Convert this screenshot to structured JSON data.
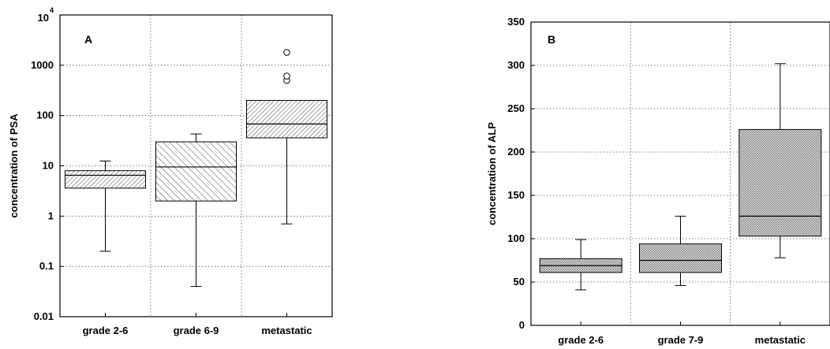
{
  "chart_data": [
    {
      "type": "box",
      "panel_label": "A",
      "ylabel": "concentration of PSA",
      "yscale": "log",
      "ylim": [
        0.01,
        10000
      ],
      "yticks": [
        {
          "value": 0.01,
          "label": "0.01"
        },
        {
          "value": 0.1,
          "label": "0.1"
        },
        {
          "value": 1,
          "label": "1"
        },
        {
          "value": 10,
          "label": "10"
        },
        {
          "value": 100,
          "label": "100"
        },
        {
          "value": 1000,
          "label": "1000"
        },
        {
          "value": 10000,
          "label": "10",
          "sup": "4"
        }
      ],
      "grid": true,
      "categories": [
        "grade 2-6",
        "grade 6-9",
        "metastatic"
      ],
      "boxes": [
        {
          "category": "grade 2-6",
          "whisker_low": 0.2,
          "q1": 3.6,
          "median": 6.5,
          "q3": 8,
          "whisker_high": 12.5,
          "outliers": []
        },
        {
          "category": "grade 6-9",
          "whisker_low": 0.04,
          "q1": 2,
          "median": 9.5,
          "q3": 30,
          "whisker_high": 43,
          "outliers": []
        },
        {
          "category": "metastatic",
          "whisker_low": 0.7,
          "q1": 36,
          "median": 68,
          "q3": 200,
          "whisker_high": 200,
          "outliers": [
            500,
            610,
            1800
          ]
        }
      ]
    },
    {
      "type": "box",
      "panel_label": "B",
      "ylabel": "concentration of ALP",
      "yscale": "linear",
      "ylim": [
        0,
        350
      ],
      "yticks": [
        {
          "value": 0,
          "label": "0"
        },
        {
          "value": 50,
          "label": "50"
        },
        {
          "value": 100,
          "label": "100"
        },
        {
          "value": 150,
          "label": "150"
        },
        {
          "value": 200,
          "label": "200"
        },
        {
          "value": 250,
          "label": "250"
        },
        {
          "value": 300,
          "label": "300"
        },
        {
          "value": 350,
          "label": "350"
        }
      ],
      "grid": true,
      "categories": [
        "grade 2-6",
        "grade 7-9",
        "metastatic"
      ],
      "boxes": [
        {
          "category": "grade 2-6",
          "whisker_low": 41,
          "q1": 61,
          "median": 69,
          "q3": 77,
          "whisker_high": 99,
          "outliers": []
        },
        {
          "category": "grade 7-9",
          "whisker_low": 46,
          "q1": 61,
          "median": 75,
          "q3": 94,
          "whisker_high": 126,
          "outliers": []
        },
        {
          "category": "metastatic",
          "whisker_low": 78,
          "q1": 103,
          "median": 126,
          "q3": 226,
          "whisker_high": 302,
          "outliers": []
        }
      ]
    }
  ]
}
